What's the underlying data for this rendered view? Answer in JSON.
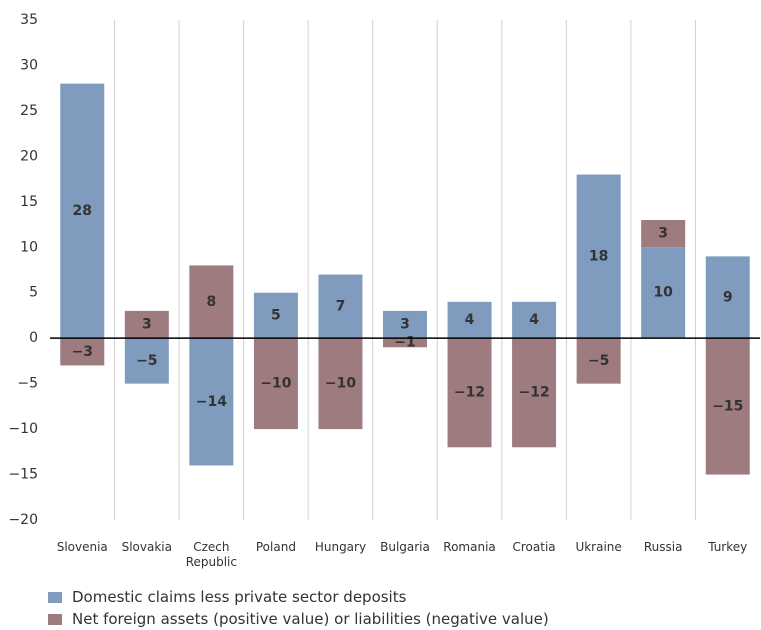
{
  "chart_data": {
    "type": "stacked-bar",
    "categories": [
      "Slovenia",
      "Slovakia",
      "Czech Republic",
      "Poland",
      "Hungary",
      "Bulgaria",
      "Romania",
      "Croatia",
      "Ukraine",
      "Russia",
      "Turkey"
    ],
    "series": [
      {
        "name": "Domestic claims less private sector deposits",
        "color": "#7f9cbf",
        "values": [
          28,
          -5,
          -14,
          5,
          7,
          3,
          4,
          4,
          18,
          10,
          9
        ],
        "value_labels": [
          "28",
          "−5",
          "−14",
          "5",
          "7",
          "3",
          "4",
          "4",
          "18",
          "10",
          "9"
        ]
      },
      {
        "name": "Net foreign assets (positive value) or liabilities (negative value)",
        "color": "#9e7b7f",
        "values": [
          -3,
          3,
          8,
          -10,
          -10,
          -1,
          -12,
          -12,
          -5,
          3,
          -15
        ],
        "value_labels": [
          "−3",
          "3",
          "8",
          "−10",
          "−10",
          "−1",
          "−12",
          "−12",
          "−5",
          "3",
          "−15"
        ]
      }
    ],
    "ylim": [
      -20,
      35
    ],
    "yticks": [
      {
        "value": -20,
        "label": "−20"
      },
      {
        "value": -15,
        "label": "−15"
      },
      {
        "value": -10,
        "label": "−10"
      },
      {
        "value": -5,
        "label": "−5"
      },
      0,
      5,
      10,
      15,
      20,
      25,
      30,
      35
    ],
    "grid": false
  }
}
